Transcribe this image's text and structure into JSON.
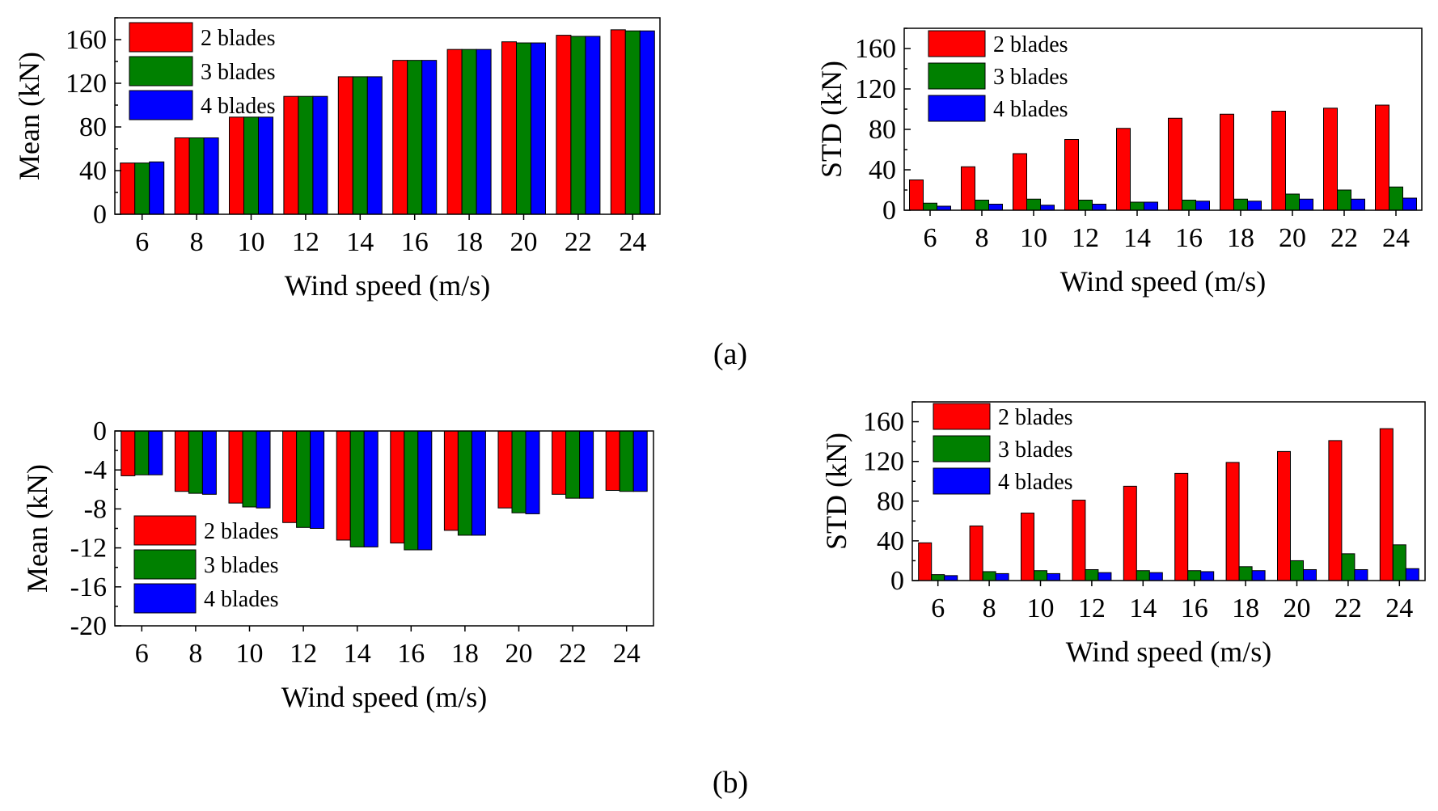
{
  "captions": {
    "a": "(a)",
    "b": "(b)"
  },
  "colors": {
    "2 blades": "#ff0000",
    "3 blades": "#008000",
    "4 blades": "#0000ff"
  },
  "chart_data": [
    {
      "type": "bar",
      "categories": [
        "6",
        "8",
        "10",
        "12",
        "14",
        "16",
        "18",
        "20",
        "22",
        "24"
      ],
      "series": [
        {
          "name": "2 blades",
          "values": [
            47,
            70,
            89,
            108,
            126,
            141,
            151,
            158,
            164,
            169
          ]
        },
        {
          "name": "3 blades",
          "values": [
            47,
            70,
            89,
            108,
            126,
            141,
            151,
            157,
            163,
            168
          ]
        },
        {
          "name": "4 blades",
          "values": [
            48,
            70,
            89,
            108,
            126,
            141,
            151,
            157,
            163,
            168
          ]
        }
      ],
      "xlabel": "Wind speed (m/s)",
      "ylabel": "Mean (kN)",
      "ylim": [
        0,
        180
      ],
      "yticks": [
        "0",
        "40",
        "80",
        "120",
        "160"
      ],
      "legend_position": "top-left"
    },
    {
      "type": "bar",
      "categories": [
        "6",
        "8",
        "10",
        "12",
        "14",
        "16",
        "18",
        "20",
        "22",
        "24"
      ],
      "series": [
        {
          "name": "2 blades",
          "values": [
            30,
            43,
            56,
            70,
            81,
            91,
            95,
            98,
            101,
            104
          ]
        },
        {
          "name": "3 blades",
          "values": [
            7,
            10,
            11,
            10,
            8,
            10,
            11,
            16,
            20,
            23
          ]
        },
        {
          "name": "4 blades",
          "values": [
            4,
            6,
            5,
            6,
            8,
            9,
            9,
            11,
            11,
            12
          ]
        }
      ],
      "xlabel": "Wind speed (m/s)",
      "ylabel": "STD (kN)",
      "ylim": [
        0,
        180
      ],
      "yticks": [
        "0",
        "40",
        "80",
        "120",
        "160"
      ],
      "legend_position": "top-left"
    },
    {
      "type": "bar",
      "categories": [
        "6",
        "8",
        "10",
        "12",
        "14",
        "16",
        "18",
        "20",
        "22",
        "24"
      ],
      "series": [
        {
          "name": "2 blades",
          "values": [
            -4.6,
            -6.2,
            -7.4,
            -9.4,
            -11.2,
            -11.5,
            -10.2,
            -7.9,
            -6.5,
            -6.1
          ]
        },
        {
          "name": "3 blades",
          "values": [
            -4.5,
            -6.4,
            -7.8,
            -9.9,
            -11.9,
            -12.2,
            -10.7,
            -8.4,
            -6.9,
            -6.2
          ]
        },
        {
          "name": "4 blades",
          "values": [
            -4.5,
            -6.5,
            -7.9,
            -10.0,
            -11.9,
            -12.2,
            -10.7,
            -8.5,
            -6.9,
            -6.2
          ]
        }
      ],
      "xlabel": "Wind speed (m/s)",
      "ylabel": "Mean (kN)",
      "ylim": [
        -20,
        0
      ],
      "yticks": [
        "0",
        "-4",
        "-8",
        "-12",
        "-16",
        "-20"
      ],
      "legend_position": "bottom-left"
    },
    {
      "type": "bar",
      "categories": [
        "6",
        "8",
        "10",
        "12",
        "14",
        "16",
        "18",
        "20",
        "22",
        "24"
      ],
      "series": [
        {
          "name": "2 blades",
          "values": [
            38,
            55,
            68,
            81,
            95,
            108,
            119,
            130,
            141,
            153
          ]
        },
        {
          "name": "3 blades",
          "values": [
            6,
            9,
            10,
            11,
            10,
            10,
            14,
            20,
            27,
            36
          ]
        },
        {
          "name": "4 blades",
          "values": [
            5,
            7,
            7,
            8,
            8,
            9,
            10,
            11,
            11,
            12
          ]
        }
      ],
      "xlabel": "Wind speed (m/s)",
      "ylabel": "STD (kN)",
      "ylim": [
        0,
        180
      ],
      "yticks": [
        "0",
        "40",
        "80",
        "120",
        "160"
      ],
      "legend_position": "top-left"
    }
  ]
}
